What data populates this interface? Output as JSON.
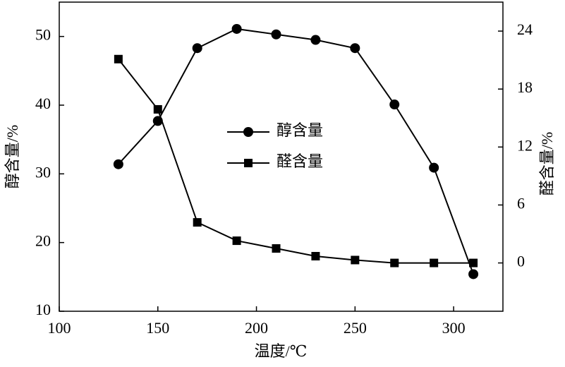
{
  "chart_data": {
    "type": "line",
    "x_label": "温度/℃",
    "y_label": "醇含量/%",
    "y2_label": "醛含量/%",
    "x": [
      130,
      150,
      170,
      190,
      210,
      230,
      250,
      270,
      290,
      310
    ],
    "series": [
      {
        "name": "醇含量",
        "color": "#000000",
        "marker": "circle",
        "values": [
          31.4,
          37.7,
          48.3,
          51.1,
          50.3,
          49.5,
          48.3,
          40.1,
          30.9,
          15.4
        ]
      },
      {
        "name": "醛含量",
        "color": "#000000",
        "marker": "square",
        "axis": "y2",
        "values": [
          21.1,
          15.9,
          4.2,
          2.3,
          1.5,
          0.7,
          0.3,
          0,
          0,
          0
        ]
      }
    ],
    "xlim": [
      100,
      325
    ],
    "xticks": [
      100,
      150,
      200,
      250,
      300
    ],
    "ylim": [
      10,
      55
    ],
    "yticks": [
      10,
      20,
      30,
      40,
      50
    ],
    "y2lim": [
      -5,
      27
    ],
    "y2ticks": [
      0,
      6,
      12,
      18,
      24
    ],
    "grid": false
  }
}
